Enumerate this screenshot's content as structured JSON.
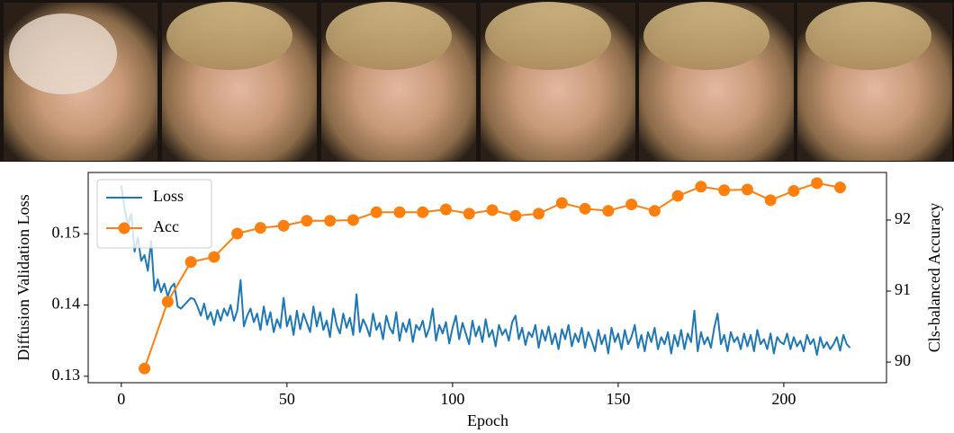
{
  "chart_data": {
    "type": "line",
    "xlabel": "Epoch",
    "ylabel": "Diffusion Validation Loss",
    "y2label": "Cls-balanced Accuracy",
    "xlim": [
      -10,
      231
    ],
    "xticks": [
      0,
      50,
      100,
      150,
      200
    ],
    "ylim": [
      0.1291,
      0.1586
    ],
    "yticks": [
      0.13,
      0.14,
      0.15
    ],
    "y2lim": [
      89.71,
      92.67
    ],
    "y2ticks": [
      90,
      91,
      92
    ],
    "legend": "upper left",
    "series": [
      {
        "name": "Loss",
        "color": "#1f77b4",
        "x": [
          0,
          1,
          2,
          3,
          4,
          5,
          6,
          7,
          8,
          9,
          10,
          11,
          12,
          13,
          14,
          15,
          16,
          17,
          18,
          19,
          20,
          21,
          22,
          23,
          24,
          25,
          26,
          27,
          28,
          29,
          30,
          31,
          32,
          33,
          34,
          35,
          36,
          37,
          38,
          39,
          40,
          41,
          42,
          43,
          44,
          45,
          46,
          47,
          48,
          49,
          50,
          51,
          52,
          53,
          54,
          55,
          56,
          57,
          58,
          59,
          60,
          61,
          62,
          63,
          64,
          65,
          66,
          67,
          68,
          69,
          70,
          71,
          72,
          73,
          74,
          75,
          76,
          77,
          78,
          79,
          80,
          81,
          82,
          83,
          84,
          85,
          86,
          87,
          88,
          89,
          90,
          91,
          92,
          93,
          94,
          95,
          96,
          97,
          98,
          99,
          100,
          101,
          102,
          103,
          104,
          105,
          106,
          107,
          108,
          109,
          110,
          111,
          112,
          113,
          114,
          115,
          116,
          117,
          118,
          119,
          120,
          121,
          122,
          123,
          124,
          125,
          126,
          127,
          128,
          129,
          130,
          131,
          132,
          133,
          134,
          135,
          136,
          137,
          138,
          139,
          140,
          141,
          142,
          143,
          144,
          145,
          146,
          147,
          148,
          149,
          150,
          151,
          152,
          153,
          154,
          155,
          156,
          157,
          158,
          159,
          160,
          161,
          162,
          163,
          164,
          165,
          166,
          167,
          168,
          169,
          170,
          171,
          172,
          173,
          174,
          175,
          176,
          177,
          178,
          179,
          180,
          181,
          182,
          183,
          184,
          185,
          186,
          187,
          188,
          189,
          190,
          191,
          192,
          193,
          194,
          195,
          196,
          197,
          198,
          199,
          200,
          201,
          202,
          203,
          204,
          205,
          206,
          207,
          208,
          209,
          210,
          211,
          212,
          213,
          214,
          215,
          216,
          217,
          218,
          219,
          220
        ],
        "values": [
          0.1568,
          0.1535,
          0.1512,
          0.1528,
          0.1475,
          0.1495,
          0.1462,
          0.147,
          0.1448,
          0.149,
          0.142,
          0.1436,
          0.1418,
          0.143,
          0.1412,
          0.1425,
          0.143,
          0.1398,
          0.1395,
          0.14,
          0.1405,
          0.141,
          0.1408,
          0.1398,
          0.1385,
          0.1402,
          0.138,
          0.139,
          0.1372,
          0.1393,
          0.1378,
          0.1395,
          0.1385,
          0.14,
          0.1378,
          0.1392,
          0.1435,
          0.137,
          0.1385,
          0.1395,
          0.1376,
          0.1388,
          0.1365,
          0.1398,
          0.1372,
          0.139,
          0.1362,
          0.138,
          0.1368,
          0.141,
          0.137,
          0.1385,
          0.1358,
          0.1392,
          0.1366,
          0.1388,
          0.1375,
          0.1362,
          0.1398,
          0.137,
          0.139,
          0.1365,
          0.1378,
          0.1355,
          0.1395,
          0.1372,
          0.136,
          0.1388,
          0.1368,
          0.1382,
          0.1358,
          0.1415,
          0.1362,
          0.138,
          0.137,
          0.1356,
          0.1388,
          0.1365,
          0.1375,
          0.1352,
          0.1385,
          0.1368,
          0.136,
          0.139,
          0.135,
          0.1375,
          0.1362,
          0.138,
          0.1348,
          0.1372,
          0.1365,
          0.1378,
          0.1355,
          0.1368,
          0.1395,
          0.135,
          0.1372,
          0.136,
          0.1376,
          0.1346,
          0.1368,
          0.1385,
          0.1352,
          0.1375,
          0.136,
          0.1345,
          0.1378,
          0.1356,
          0.137,
          0.1348,
          0.138,
          0.1355,
          0.1365,
          0.1342,
          0.1372,
          0.1358,
          0.1366,
          0.135,
          0.1376,
          0.1385,
          0.1352,
          0.1368,
          0.1344,
          0.1362,
          0.1355,
          0.1372,
          0.134,
          0.1365,
          0.135,
          0.137,
          0.1345,
          0.136,
          0.1338,
          0.1366,
          0.1352,
          0.1372,
          0.1342,
          0.136,
          0.1348,
          0.1368,
          0.134,
          0.1362,
          0.135,
          0.1335,
          0.1365,
          0.1345,
          0.1358,
          0.1332,
          0.1368,
          0.1348,
          0.136,
          0.1338,
          0.1365,
          0.1345,
          0.1355,
          0.1372,
          0.134,
          0.1358,
          0.1335,
          0.1362,
          0.1348,
          0.1368,
          0.1338,
          0.1355,
          0.1345,
          0.1362,
          0.1332,
          0.1358,
          0.1342,
          0.1365,
          0.1338,
          0.136,
          0.1348,
          0.1392,
          0.1335,
          0.1362,
          0.1345,
          0.1355,
          0.134,
          0.1368,
          0.1388,
          0.1345,
          0.1358,
          0.1335,
          0.1362,
          0.1348,
          0.1355,
          0.1338,
          0.136,
          0.1342,
          0.1358,
          0.1335,
          0.1365,
          0.1345,
          0.1352,
          0.1338,
          0.136,
          0.1332,
          0.1355,
          0.1348,
          0.1345,
          0.136,
          0.1338,
          0.1355,
          0.1342,
          0.135,
          0.1335,
          0.1358,
          0.1345,
          0.1352,
          0.133,
          0.1355,
          0.134,
          0.1348,
          0.1338,
          0.1345,
          0.1355,
          0.1336,
          0.1358,
          0.1345,
          0.134
        ]
      },
      {
        "name": "Acc",
        "color": "#ff7f0e",
        "axis": "y2",
        "marker": "o",
        "x": [
          7,
          14,
          21,
          28,
          35,
          42,
          49,
          56,
          63,
          70,
          77,
          84,
          91,
          98,
          105,
          112,
          119,
          126,
          133,
          140,
          147,
          154,
          161,
          168,
          175,
          182,
          189,
          196,
          203,
          210,
          217
        ],
        "values": [
          89.91,
          90.85,
          91.41,
          91.48,
          91.81,
          91.89,
          91.92,
          91.99,
          91.99,
          92.0,
          92.11,
          92.11,
          92.11,
          92.15,
          92.09,
          92.14,
          92.06,
          92.09,
          92.24,
          92.16,
          92.13,
          92.22,
          92.13,
          92.34,
          92.47,
          92.42,
          92.43,
          92.28,
          92.41,
          92.52,
          92.46
        ]
      }
    ]
  }
}
